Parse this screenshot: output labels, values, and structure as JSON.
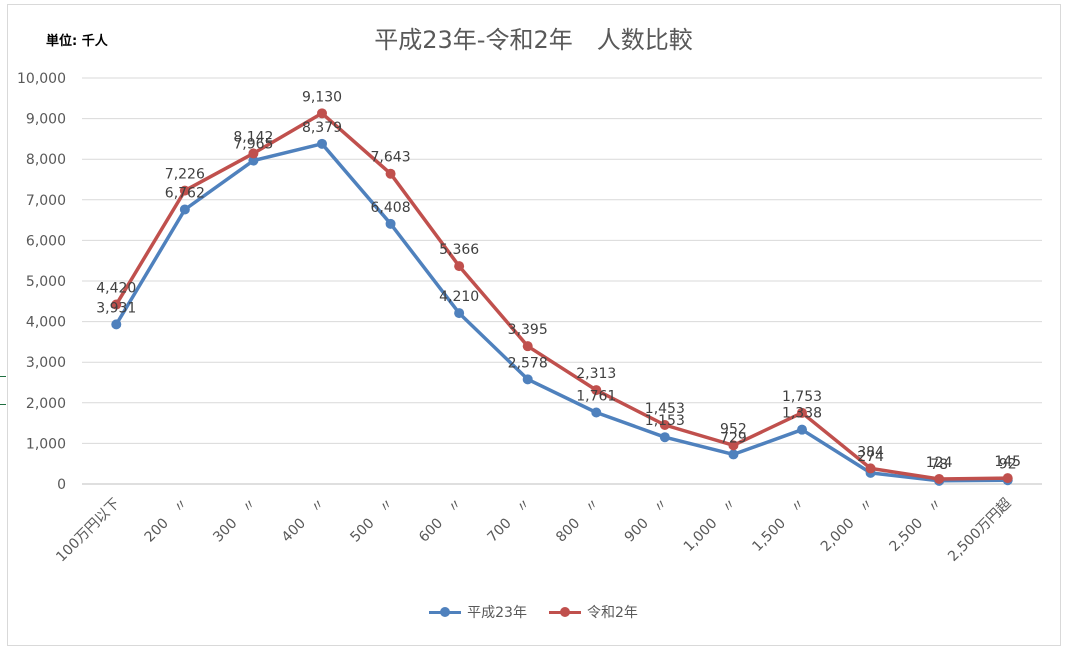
{
  "chart_data": {
    "type": "line",
    "title": "平成23年-令和2年　人数比較",
    "unit_label": "単位: 千人",
    "categories": [
      "100万円以下",
      "200　〃",
      "300　〃",
      "400　〃",
      "500　〃",
      "600　〃",
      "700　〃",
      "800　〃",
      "900　〃",
      "1,000　〃",
      "1,500　〃",
      "2,000　〃",
      "2,500　〃",
      "2,500万円超"
    ],
    "series": [
      {
        "name": "平成23年",
        "color": "#4f81bd",
        "values": [
          3931,
          6762,
          7965,
          8379,
          6408,
          4210,
          2578,
          1761,
          1153,
          729,
          1338,
          274,
          78,
          92
        ],
        "labels": [
          "3,931",
          "6,762",
          "7,965",
          "8,379",
          "6,408",
          "4,210",
          "2,578",
          "1,761",
          "1,153",
          "729",
          "1,338",
          "274",
          "78",
          "92"
        ]
      },
      {
        "name": "令和2年",
        "color": "#c0504d",
        "values": [
          4420,
          7226,
          8142,
          9130,
          7643,
          5366,
          3395,
          2313,
          1453,
          952,
          1753,
          384,
          124,
          145
        ],
        "labels": [
          "4,420",
          "7,226",
          "8,142",
          "9,130",
          "7,643",
          "5,366",
          "3,395",
          "2,313",
          "1,453",
          "952",
          "1,753",
          "384",
          "124",
          "145"
        ]
      }
    ],
    "ylim": [
      0,
      10000
    ],
    "yticks": [
      0,
      1000,
      2000,
      3000,
      4000,
      5000,
      6000,
      7000,
      8000,
      9000,
      10000
    ],
    "ytick_labels": [
      "0",
      "1,000",
      "2,000",
      "3,000",
      "4,000",
      "5,000",
      "6,000",
      "7,000",
      "8,000",
      "9,000",
      "10,000"
    ],
    "grid": true,
    "legend_position": "bottom"
  }
}
